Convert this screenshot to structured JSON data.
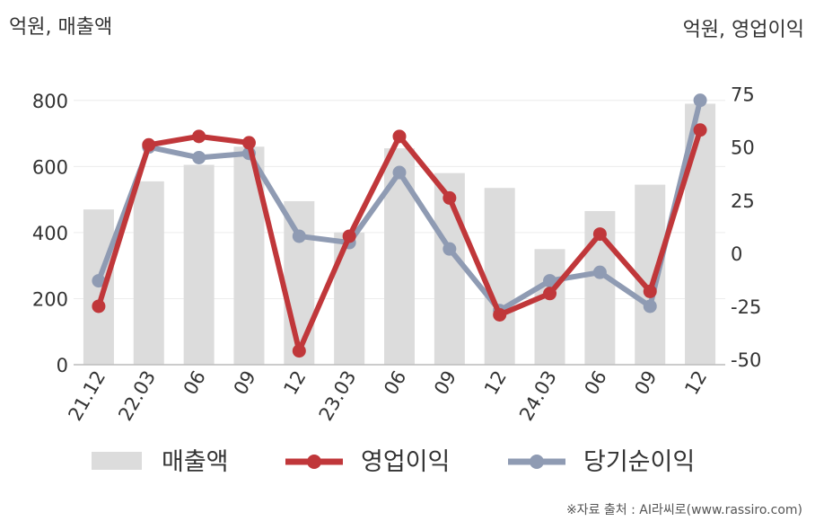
{
  "chart_data": {
    "type": "bar",
    "categories": [
      "21.12",
      "22.03",
      "06",
      "09",
      "12",
      "23.03",
      "06",
      "09",
      "12",
      "24.03",
      "06",
      "09",
      "12"
    ],
    "left_axis": {
      "unit_label": "억원, 매출액",
      "ylim": [
        0,
        900
      ],
      "ticks": [
        0,
        200,
        400,
        600,
        800
      ]
    },
    "right_axis": {
      "unit_label": "억원, 영업이익",
      "ylim": [
        -52.5,
        87.5
      ],
      "ticks": [
        -50,
        -25,
        0,
        25,
        50,
        75
      ]
    },
    "series": [
      {
        "name": "매출액",
        "type": "bar",
        "axis": "left",
        "color": "#dcdcdc",
        "values": [
          470,
          555,
          605,
          660,
          495,
          400,
          655,
          580,
          535,
          350,
          465,
          545,
          790
        ]
      },
      {
        "name": "영업이익",
        "type": "line",
        "axis": "right",
        "color": "#c0373a",
        "values": [
          -25,
          51,
          55,
          52,
          -46,
          8,
          55,
          26,
          -29,
          -19,
          9,
          -18,
          58
        ]
      },
      {
        "name": "당기순이익",
        "type": "line",
        "axis": "right",
        "color": "#8f9bb3",
        "values": [
          -13,
          50,
          45,
          47,
          8,
          5,
          38,
          2,
          -27,
          -13,
          -9,
          -25,
          72
        ]
      }
    ],
    "grid": true,
    "legend_position": "bottom"
  },
  "source_text": "※자료 출처 : AI라씨로(www.rassiro.com)"
}
